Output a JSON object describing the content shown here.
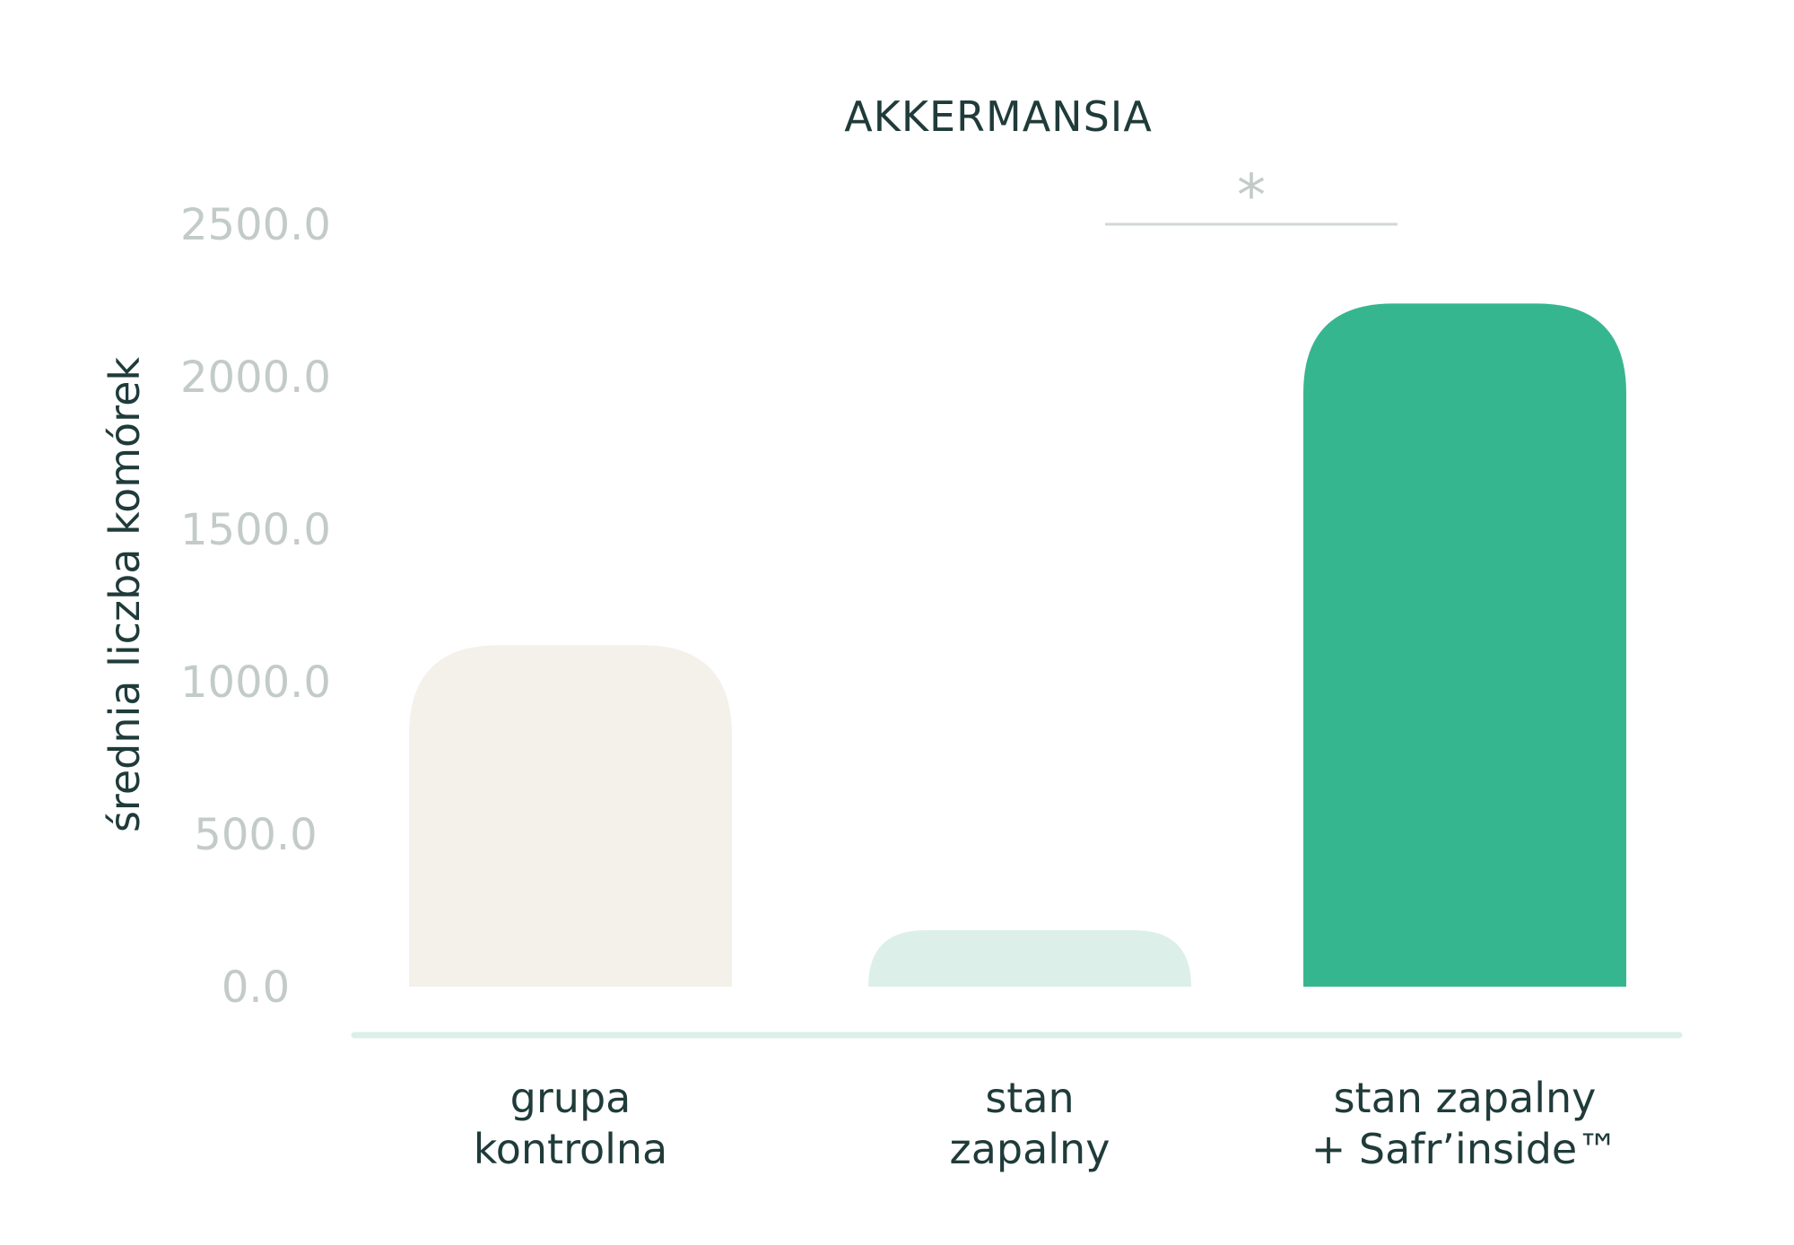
{
  "chart_data": {
    "type": "bar",
    "title": "AKKERMANSIA",
    "xlabel": "",
    "ylabel": "średnia liczba komórek",
    "ylim": [
      0,
      2500
    ],
    "yticks": [
      "0.0",
      "500.0",
      "1000.0",
      "1500.0",
      "2000.0",
      "2500.0"
    ],
    "categories": [
      [
        "grupa",
        "kontrolna"
      ],
      [
        "stan",
        "zapalny"
      ],
      [
        "stan zapalny",
        "+ Safr’inside™"
      ]
    ],
    "values": [
      1120,
      185,
      2240
    ],
    "bar_colors": [
      "#f4f1ea",
      "#dcefe8",
      "#36b68f"
    ],
    "significance": {
      "from": 1,
      "to": 2,
      "marker": "*"
    },
    "grid": false
  },
  "colors": {
    "text": "#1f3b3a",
    "tick": "#c3cbc8",
    "baseline": "#dcefe8",
    "sig_line": "#d2d8d6"
  }
}
